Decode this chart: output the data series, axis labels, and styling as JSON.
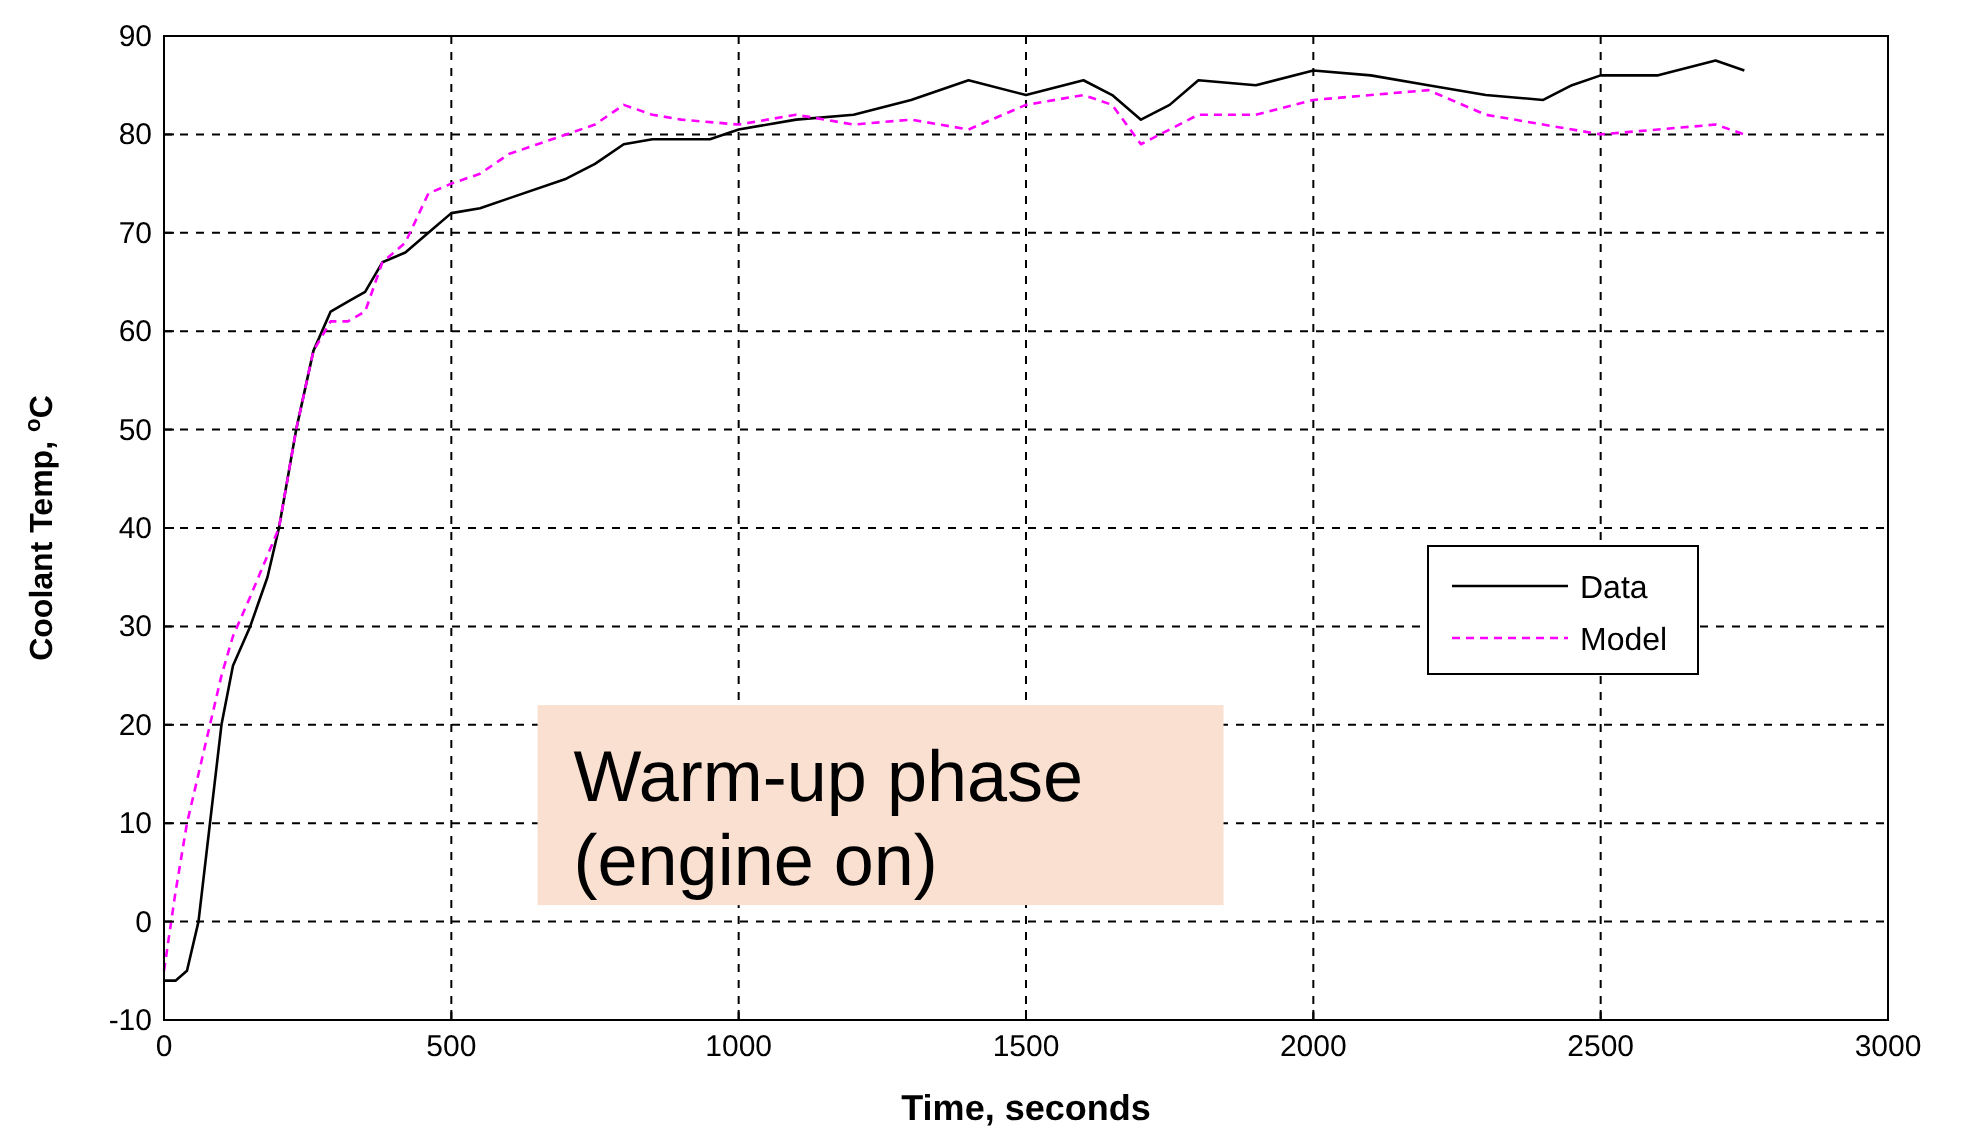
{
  "chart_data": {
    "type": "line",
    "xlabel": "Time, seconds",
    "ylabel": "Coolant Temp, $^{o}$C",
    "xlim": [
      0,
      3000
    ],
    "ylim": [
      -10,
      90
    ],
    "xticks": [
      0,
      500,
      1000,
      1500,
      2000,
      2500,
      3000
    ],
    "yticks": [
      -10,
      0,
      10,
      20,
      30,
      40,
      50,
      60,
      70,
      80,
      90
    ],
    "grid": true,
    "legend": "right",
    "annotations": [
      "Warm-up phase\n(engine on)"
    ],
    "series": [
      {
        "name": "Data",
        "color": "#000000",
        "line_style": "solid",
        "x": [
          0,
          20,
          40,
          60,
          80,
          100,
          120,
          150,
          180,
          200,
          230,
          260,
          290,
          320,
          350,
          380,
          420,
          460,
          500,
          550,
          600,
          700,
          750,
          800,
          850,
          950,
          1000,
          1100,
          1200,
          1300,
          1400,
          1500,
          1600,
          1650,
          1700,
          1750,
          1800,
          1900,
          2000,
          2100,
          2200,
          2300,
          2400,
          2450,
          2500,
          2600,
          2700,
          2750
        ],
        "values": [
          -6,
          -6,
          -5,
          0,
          10,
          20,
          26,
          30,
          35,
          40,
          50,
          58,
          62,
          63,
          64,
          67,
          68,
          70,
          72,
          72.5,
          73.5,
          75.5,
          77,
          79,
          79.5,
          79.5,
          80.5,
          81.5,
          82,
          83.5,
          85.5,
          84,
          85.5,
          84,
          81.5,
          83,
          85.5,
          85,
          86.5,
          86,
          85,
          84,
          83.5,
          85,
          86,
          86,
          87.5,
          86.5
        ]
      },
      {
        "name": "Model",
        "color": "#ff00ff",
        "line_style": "dashed",
        "x": [
          0,
          20,
          40,
          60,
          80,
          100,
          120,
          150,
          200,
          230,
          260,
          290,
          320,
          350,
          380,
          420,
          460,
          500,
          550,
          600,
          650,
          700,
          750,
          800,
          850,
          900,
          1000,
          1100,
          1200,
          1300,
          1400,
          1500,
          1600,
          1650,
          1700,
          1800,
          1900,
          2000,
          2100,
          2200,
          2300,
          2400,
          2500,
          2600,
          2700,
          2750
        ],
        "values": [
          -5,
          3,
          10,
          15,
          20,
          25,
          29,
          33,
          40,
          50,
          58,
          61,
          61,
          62,
          67,
          69,
          74,
          75,
          76,
          78,
          79,
          80,
          81,
          83,
          82,
          81.5,
          81,
          82,
          81,
          81.5,
          80.5,
          83,
          84,
          83,
          79,
          82,
          82,
          83.5,
          84,
          84.5,
          82,
          81,
          80,
          80.5,
          81,
          80
        ]
      }
    ]
  }
}
